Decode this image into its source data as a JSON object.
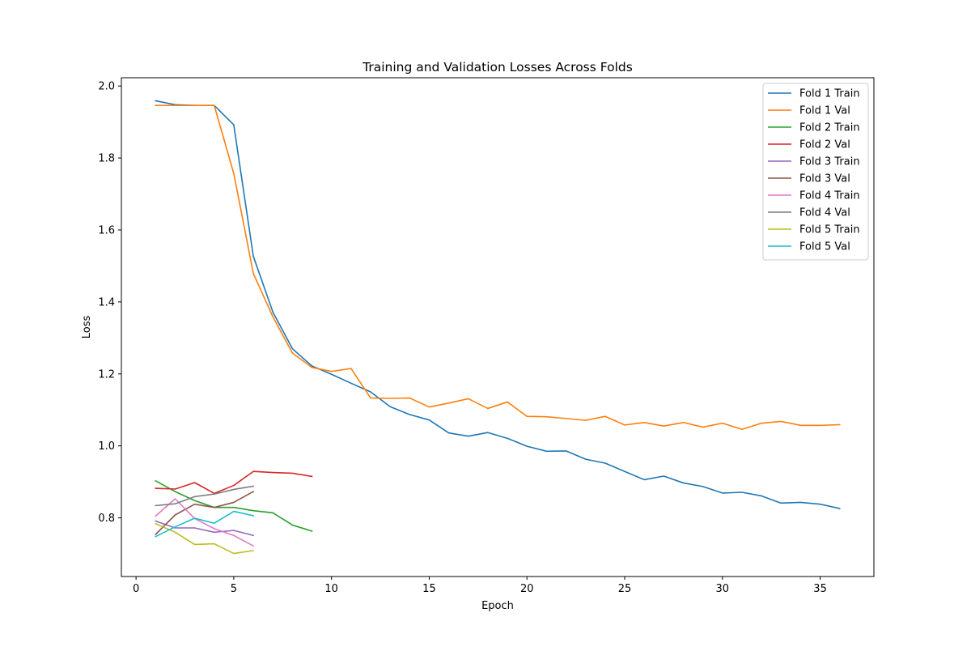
{
  "chart_data": {
    "type": "line",
    "title": "Training and Validation Losses Across Folds",
    "xlabel": "Epoch",
    "ylabel": "Loss",
    "xlim": [
      -0.75,
      37.75
    ],
    "ylim": [
      0.637,
      2.023
    ],
    "xticks": [
      0,
      5,
      10,
      15,
      20,
      25,
      30,
      35
    ],
    "yticks": [
      0.8,
      1.0,
      1.2,
      1.4,
      1.6,
      1.8,
      2.0
    ],
    "xtick_labels": [
      "0",
      "5",
      "10",
      "15",
      "20",
      "25",
      "30",
      "35"
    ],
    "ytick_labels": [
      "0.8",
      "1.0",
      "1.2",
      "1.4",
      "1.6",
      "1.8",
      "2.0"
    ],
    "grid": false,
    "legend_position": "upper right",
    "series": [
      {
        "name": "Fold 1 Train",
        "color": "#1f77b4",
        "x": [
          1,
          2,
          3,
          4,
          5,
          6,
          7,
          8,
          9,
          10,
          11,
          12,
          13,
          14,
          15,
          16,
          17,
          18,
          19,
          20,
          21,
          22,
          23,
          24,
          25,
          26,
          27,
          28,
          29,
          30,
          31,
          32,
          33,
          34,
          35,
          36
        ],
        "y": [
          1.959,
          1.948,
          1.946,
          1.946,
          1.892,
          1.527,
          1.372,
          1.27,
          1.222,
          1.199,
          1.174,
          1.15,
          1.109,
          1.087,
          1.072,
          1.036,
          1.027,
          1.037,
          1.021,
          0.999,
          0.985,
          0.986,
          0.963,
          0.952,
          0.929,
          0.906,
          0.916,
          0.897,
          0.887,
          0.869,
          0.871,
          0.861,
          0.841,
          0.843,
          0.838,
          0.826
        ]
      },
      {
        "name": "Fold 1 Val",
        "color": "#ff7f0e",
        "x": [
          1,
          2,
          3,
          4,
          5,
          6,
          7,
          8,
          9,
          10,
          11,
          12,
          13,
          14,
          15,
          16,
          17,
          18,
          19,
          20,
          21,
          22,
          23,
          24,
          25,
          26,
          27,
          28,
          29,
          30,
          31,
          32,
          33,
          34,
          35,
          36
        ],
        "y": [
          1.946,
          1.946,
          1.946,
          1.946,
          1.757,
          1.479,
          1.359,
          1.258,
          1.218,
          1.207,
          1.215,
          1.133,
          1.132,
          1.133,
          1.108,
          1.119,
          1.131,
          1.104,
          1.122,
          1.082,
          1.081,
          1.076,
          1.071,
          1.082,
          1.058,
          1.065,
          1.055,
          1.065,
          1.052,
          1.063,
          1.046,
          1.063,
          1.068,
          1.057,
          1.057,
          1.059
        ]
      },
      {
        "name": "Fold 2 Train",
        "color": "#2ca02c",
        "x": [
          1,
          2,
          3,
          4,
          5,
          6,
          7,
          8,
          9
        ],
        "y": [
          0.903,
          0.873,
          0.848,
          0.829,
          0.829,
          0.82,
          0.814,
          0.78,
          0.763
        ]
      },
      {
        "name": "Fold 2 Val",
        "color": "#d62728",
        "x": [
          1,
          2,
          3,
          4,
          5,
          6,
          7,
          8,
          9
        ],
        "y": [
          0.882,
          0.88,
          0.898,
          0.868,
          0.89,
          0.929,
          0.926,
          0.924,
          0.915
        ]
      },
      {
        "name": "Fold 3 Train",
        "color": "#9467bd",
        "x": [
          1,
          2,
          3,
          4,
          5,
          6
        ],
        "y": [
          0.791,
          0.772,
          0.772,
          0.76,
          0.765,
          0.751
        ]
      },
      {
        "name": "Fold 3 Val",
        "color": "#8c564b",
        "x": [
          1,
          2,
          3,
          4,
          5,
          6
        ],
        "y": [
          0.754,
          0.808,
          0.838,
          0.829,
          0.843,
          0.873
        ]
      },
      {
        "name": "Fold 4 Train",
        "color": "#e377c2",
        "x": [
          1,
          2,
          3,
          4,
          5,
          6
        ],
        "y": [
          0.805,
          0.853,
          0.798,
          0.77,
          0.751,
          0.722
        ]
      },
      {
        "name": "Fold 4 Val",
        "color": "#7f7f7f",
        "x": [
          1,
          2,
          3,
          4,
          5,
          6
        ],
        "y": [
          0.834,
          0.839,
          0.859,
          0.866,
          0.879,
          0.888
        ]
      },
      {
        "name": "Fold 5 Train",
        "color": "#bcbd22",
        "x": [
          1,
          2,
          3,
          4,
          5,
          6
        ],
        "y": [
          0.784,
          0.76,
          0.726,
          0.728,
          0.701,
          0.709
        ]
      },
      {
        "name": "Fold 5 Val",
        "color": "#17becf",
        "x": [
          1,
          2,
          3,
          4,
          5,
          6
        ],
        "y": [
          0.748,
          0.775,
          0.799,
          0.785,
          0.818,
          0.806
        ]
      }
    ]
  }
}
